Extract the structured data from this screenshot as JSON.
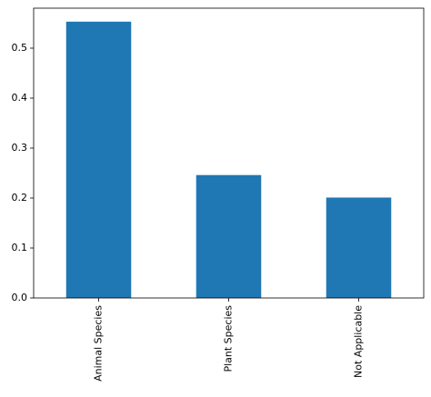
{
  "chart_data": {
    "type": "bar",
    "categories": [
      "Animal Species",
      "Plant Species",
      "Not Applicable"
    ],
    "values": [
      0.553,
      0.246,
      0.201
    ],
    "color": "#1f77b4",
    "ylim": [
      0,
      0.58
    ],
    "yticks": [
      {
        "value": 0,
        "label": "0.0"
      },
      0.1,
      0.2,
      0.3,
      0.4,
      0.5
    ],
    "grid": false
  }
}
